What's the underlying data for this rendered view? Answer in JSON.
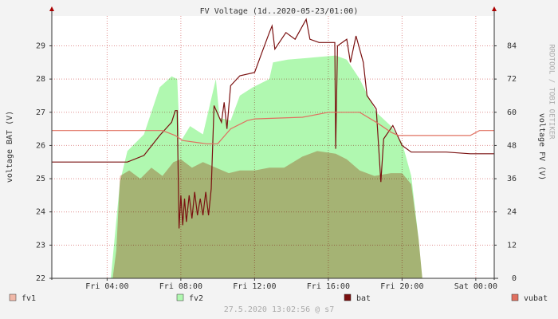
{
  "chart_data": {
    "type": "line",
    "title": "FV Voltage (1d..2020-05-23/01:00)",
    "y_label": "voltage BAT (V)",
    "y2_label": "voltage FV (V)",
    "side_note": "RRDTOOL / TOBI OETIKER",
    "footer": "27.5.2020 13:02:56 @ s7",
    "xlim": [
      1,
      25
    ],
    "xticks": [
      {
        "value": 4,
        "label": "Fri 04:00"
      },
      {
        "value": 8,
        "label": "Fri 08:00"
      },
      {
        "value": 12,
        "label": "Fri 12:00"
      },
      {
        "value": 16,
        "label": "Fri 16:00"
      },
      {
        "value": 20,
        "label": "Fri 20:00"
      },
      {
        "value": 24,
        "label": "Sat 00:00"
      }
    ],
    "ylim": [
      22,
      29.9
    ],
    "yticks": [
      22,
      23,
      24,
      25,
      26,
      27,
      28,
      29
    ],
    "y2lim": [
      0,
      94.8
    ],
    "y2ticks": [
      0,
      12,
      24,
      36,
      48,
      60,
      72,
      84
    ],
    "grid": true,
    "series": [
      {
        "name": "fv1",
        "color": "#f0b8a8",
        "kind": "area",
        "axis": "y2",
        "x": [
          1,
          4.3,
          4.5,
          4.7,
          5.2,
          5.8,
          6.4,
          7.0,
          7.6,
          8.0,
          8.6,
          9.2,
          9.9,
          10.6,
          11.2,
          12.0,
          12.8,
          13.6,
          14.6,
          15.4,
          16.4,
          17.0,
          17.7,
          18.5,
          19.4,
          20.0,
          20.5,
          20.9,
          21.1,
          25
        ],
        "values": [
          0,
          0,
          10,
          37,
          39,
          36,
          40,
          37,
          42,
          43,
          40,
          42,
          40,
          38,
          39,
          39,
          40,
          40,
          44,
          46,
          45,
          43,
          39,
          37,
          38,
          38,
          34,
          14,
          0,
          0
        ]
      },
      {
        "name": "fv2",
        "color": "#b0f8b0",
        "kind": "area",
        "axis": "y2",
        "x": [
          1,
          4.2,
          4.7,
          5.1,
          6.0,
          6.85,
          7.5,
          7.8,
          7.95,
          8.5,
          9.2,
          9.9,
          10.1,
          10.7,
          11.2,
          11.9,
          12.8,
          13.0,
          13.8,
          15.5,
          16.4,
          17.0,
          17.7,
          18.6,
          19.4,
          20.0,
          20.5,
          20.9,
          21.1,
          25
        ],
        "values": [
          0,
          0,
          35,
          46,
          52,
          69,
          73,
          72,
          49,
          55,
          52,
          72,
          58,
          57,
          66,
          69,
          72,
          78,
          79,
          80,
          80.5,
          79,
          72,
          60,
          55,
          49,
          37,
          14,
          0,
          0
        ]
      },
      {
        "name": "bat",
        "color": "#7a1010",
        "kind": "line",
        "axis": "y",
        "x": [
          1,
          5.1,
          6.0,
          6.85,
          7.5,
          7.7,
          7.8,
          7.9,
          8.0,
          8.1,
          8.2,
          8.3,
          8.45,
          8.6,
          8.75,
          8.9,
          9.05,
          9.2,
          9.35,
          9.5,
          9.65,
          9.8,
          10.2,
          10.35,
          10.5,
          10.7,
          11.2,
          12.0,
          12.4,
          12.8,
          12.95,
          13.1,
          13.7,
          14.2,
          14.8,
          15.0,
          15.5,
          16.35,
          16.4,
          16.5,
          17.0,
          17.2,
          17.5,
          17.9,
          18.1,
          18.6,
          18.85,
          19.0,
          19.5,
          20.0,
          20.5,
          22.4,
          23.7,
          25
        ],
        "values": [
          25.5,
          25.5,
          25.7,
          26.3,
          26.7,
          27.05,
          27.05,
          23.5,
          24.5,
          23.6,
          24.4,
          23.7,
          24.5,
          23.8,
          24.6,
          23.9,
          24.4,
          23.9,
          24.6,
          23.9,
          24.7,
          27.2,
          26.7,
          27.3,
          26.5,
          27.8,
          28.1,
          28.2,
          28.8,
          29.4,
          29.6,
          28.9,
          29.4,
          29.2,
          29.8,
          29.2,
          29.1,
          29.1,
          25.9,
          29.0,
          29.2,
          28.5,
          29.3,
          28.5,
          27.5,
          27.1,
          24.9,
          26.2,
          26.6,
          26.0,
          25.8,
          25.8,
          25.75,
          25.75
        ]
      },
      {
        "name": "vubat",
        "color": "#e07060",
        "kind": "line",
        "axis": "y",
        "x": [
          1,
          7.0,
          7.7,
          8.1,
          9.4,
          10.0,
          10.7,
          11.6,
          12.0,
          14.6,
          16.0,
          17.7,
          18.6,
          19.4,
          19.8,
          23.7,
          24.2,
          25
        ],
        "values": [
          26.45,
          26.45,
          26.3,
          26.15,
          26.05,
          26.05,
          26.5,
          26.75,
          26.8,
          26.85,
          27.0,
          27.0,
          26.7,
          26.4,
          26.3,
          26.3,
          26.45,
          26.45
        ]
      }
    ]
  }
}
